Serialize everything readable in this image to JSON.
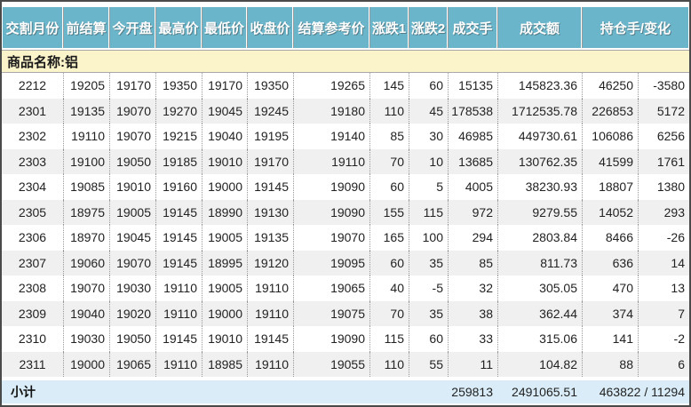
{
  "table": {
    "header": [
      "交割月份",
      "前结算",
      "今开盘",
      "最高价",
      "最低价",
      "收盘价",
      "结算参考价",
      "涨跌1",
      "涨跌2",
      "成交手",
      "成交额",
      "持仓手/变化"
    ],
    "column_keys": [
      "delivery-month",
      "prev-settlement",
      "open",
      "high",
      "low",
      "close",
      "settlement-ref",
      "change1",
      "change2",
      "volume",
      "turnover",
      "open-interest",
      "oi-change"
    ],
    "group_row": {
      "label": "商品名称:铝"
    },
    "rows": [
      [
        "2212",
        "19205",
        "19170",
        "19350",
        "19170",
        "19350",
        "19265",
        "145",
        "60",
        "15135",
        "145823.36",
        "46250",
        "-3580"
      ],
      [
        "2301",
        "19135",
        "19070",
        "19270",
        "19045",
        "19245",
        "19180",
        "110",
        "45",
        "178538",
        "1712535.78",
        "226853",
        "5172"
      ],
      [
        "2302",
        "19110",
        "19070",
        "19215",
        "19040",
        "19195",
        "19140",
        "85",
        "30",
        "46985",
        "449730.61",
        "106086",
        "6256"
      ],
      [
        "2303",
        "19100",
        "19050",
        "19185",
        "19010",
        "19170",
        "19110",
        "70",
        "10",
        "13685",
        "130762.35",
        "41599",
        "1761"
      ],
      [
        "2304",
        "19085",
        "19010",
        "19160",
        "19000",
        "19145",
        "19090",
        "60",
        "5",
        "4005",
        "38230.93",
        "18807",
        "1380"
      ],
      [
        "2305",
        "18975",
        "19005",
        "19145",
        "18990",
        "19130",
        "19090",
        "155",
        "115",
        "972",
        "9279.55",
        "14052",
        "293"
      ],
      [
        "2306",
        "18970",
        "19045",
        "19145",
        "19005",
        "19135",
        "19070",
        "165",
        "100",
        "294",
        "2803.84",
        "8466",
        "-26"
      ],
      [
        "2307",
        "19060",
        "19070",
        "19145",
        "18995",
        "19120",
        "19095",
        "60",
        "35",
        "85",
        "811.73",
        "636",
        "14"
      ],
      [
        "2308",
        "19070",
        "19030",
        "19110",
        "19005",
        "19110",
        "19065",
        "40",
        "-5",
        "32",
        "305.05",
        "470",
        "13"
      ],
      [
        "2309",
        "19040",
        "19020",
        "19110",
        "19000",
        "19110",
        "19075",
        "70",
        "35",
        "38",
        "362.44",
        "374",
        "7"
      ],
      [
        "2310",
        "19030",
        "19050",
        "19145",
        "19010",
        "19145",
        "19090",
        "115",
        "60",
        "33",
        "315.06",
        "141",
        "-2"
      ],
      [
        "2311",
        "19000",
        "19065",
        "19110",
        "18985",
        "19110",
        "19055",
        "110",
        "55",
        "11",
        "104.82",
        "88",
        "6"
      ]
    ],
    "subtotal": {
      "label": "小计",
      "volume": "259813",
      "turnover": "2491065.51",
      "open_interest_change": "463822 / 11294"
    }
  },
  "colors": {
    "header_bg": "#6ab5ca",
    "group_row_bg": "#fbf3ca",
    "alt_row_bg": "#f0f0f0",
    "subtotal_bg": "#d9ecf7",
    "outer_border": "#4a4a4a"
  }
}
